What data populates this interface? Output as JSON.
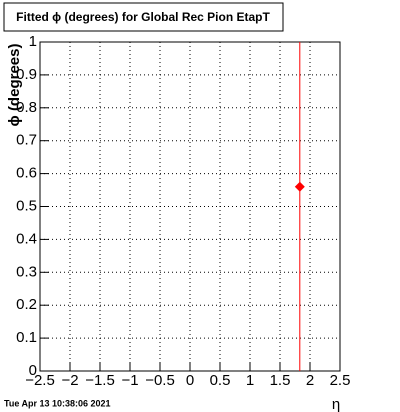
{
  "chart_data": {
    "type": "scatter",
    "title": "Fitted ϕ (degrees) for Global Rec Pion EtapT",
    "x_label": "η",
    "y_label": "ϕ (degrees)",
    "timestamp": "Tue Apr 13 10:38:06 2021",
    "x": [
      1.83
    ],
    "values": [
      0.56
    ],
    "errors": [
      0.6
    ],
    "color": "#ff0000",
    "xlim": [
      -2.5,
      2.5
    ],
    "xticks": [
      {
        "value": -2.5,
        "label": "−2.5"
      },
      {
        "value": -2,
        "label": "−2"
      },
      {
        "value": -1.5,
        "label": "−1.5"
      },
      {
        "value": -1,
        "label": "−1"
      },
      {
        "value": -0.5,
        "label": "−0.5"
      },
      0,
      0.5,
      1,
      1.5,
      2,
      2.5
    ],
    "ylim": [
      0,
      1
    ],
    "yticks": [
      0,
      0.1,
      0.2,
      0.3,
      0.4,
      0.5,
      0.6,
      0.7,
      0.8,
      0.9,
      1
    ],
    "grid": true
  }
}
